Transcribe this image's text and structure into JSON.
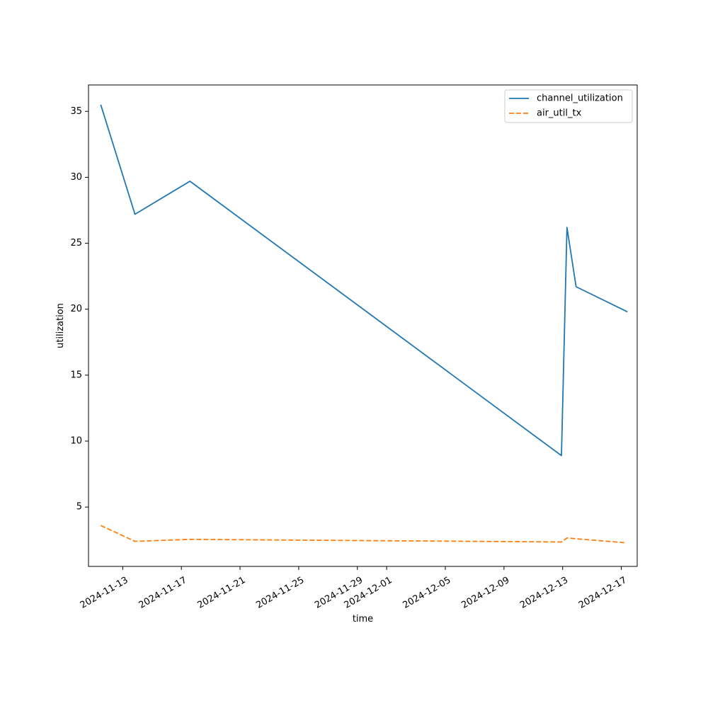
{
  "chart_data": {
    "type": "line",
    "title": "",
    "xlabel": "time",
    "ylabel": "utilization",
    "x_type": "date",
    "xlim": [
      "2024-11-10T16:00",
      "2024-12-18T02:00"
    ],
    "ylim": [
      0.5,
      37.0
    ],
    "x_ticks": [
      "2024-11-13",
      "2024-11-17",
      "2024-11-21",
      "2024-11-25",
      "2024-11-29",
      "2024-12-01",
      "2024-12-05",
      "2024-12-09",
      "2024-12-13",
      "2024-12-17"
    ],
    "y_ticks": [
      5,
      10,
      15,
      20,
      25,
      30,
      35
    ],
    "grid": false,
    "legend": "top-right",
    "series": [
      {
        "name": "channel_utilization",
        "color": "#1f77b4",
        "dash": "solid",
        "points": [
          [
            "2024-11-11T12:00",
            35.5
          ],
          [
            "2024-11-13T20:00",
            27.2
          ],
          [
            "2024-11-17T14:00",
            29.7
          ],
          [
            "2024-12-12T22:00",
            8.9
          ],
          [
            "2024-12-13T07:00",
            26.2
          ],
          [
            "2024-12-13T22:00",
            21.7
          ],
          [
            "2024-12-17T10:00",
            19.8
          ]
        ]
      },
      {
        "name": "air_util_tx",
        "color": "#ff7f0e",
        "dash": "dashed",
        "points": [
          [
            "2024-11-11T12:00",
            3.6
          ],
          [
            "2024-11-13T20:00",
            2.4
          ],
          [
            "2024-11-17T14:00",
            2.55
          ],
          [
            "2024-12-12T22:00",
            2.35
          ],
          [
            "2024-12-13T07:00",
            2.65
          ],
          [
            "2024-12-17T05:00",
            2.3
          ]
        ]
      }
    ]
  }
}
